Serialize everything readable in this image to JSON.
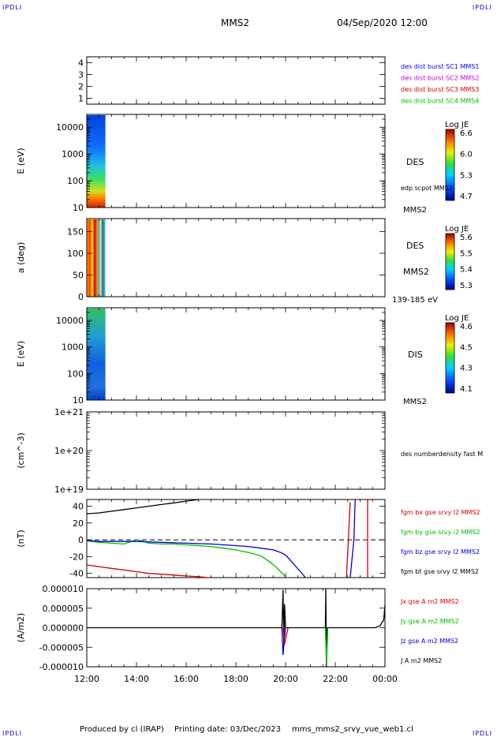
{
  "corners": {
    "tl": "IPDLI",
    "tr": "IPDLI",
    "bl": "IPDLI",
    "br": "IPDLI"
  },
  "header": {
    "spacecraft": "MMS2",
    "datetime": "04/Sep/2020 12:00"
  },
  "footer": {
    "produced_by": "Produced by cl (IRAP)",
    "printing_date": "Printing date: 03/Dec/2023",
    "product": "mms_mms2_srvy_vue_web1.cl"
  },
  "time_axis": {
    "tick_labels": [
      "12:00",
      "14:00",
      "16:00",
      "18:00",
      "20:00",
      "22:00",
      "00:00"
    ],
    "range_hours": [
      12,
      24
    ]
  },
  "chart_data": [
    {
      "type": "scatter",
      "panel": "spacecraft-availability",
      "ylabel": "",
      "ylim": [
        0.5,
        4.5
      ],
      "yticks": [
        "1",
        "2",
        "3",
        "4"
      ],
      "legend": [
        {
          "name": "des dist burst SC1 MMS1",
          "color": "#0000ff"
        },
        {
          "name": "des dist burst SC2 MMS2",
          "color": "#cc00cc"
        },
        {
          "name": "des dist burst SC3 MMS3",
          "color": "#cc0000"
        },
        {
          "name": "des dist burst SC4 MMS4",
          "color": "#00bb00"
        }
      ],
      "series": []
    },
    {
      "type": "heatmap",
      "panel": "des-energy",
      "ylabel": "E (eV)",
      "yscale": "log",
      "ylim": [
        10,
        30000
      ],
      "yticks": [
        "10",
        "100",
        "1000",
        "10000"
      ],
      "x_extent_hours": [
        12.0,
        12.75
      ],
      "labels": [
        "DES",
        "edp scpot MMS2",
        "MMS2"
      ],
      "colorbar": {
        "title": "Log JE",
        "ticks": [
          "6.6",
          "6.0",
          "5.3",
          "4.7"
        ]
      }
    },
    {
      "type": "heatmap",
      "panel": "des-pitch-angle",
      "ylabel": "a (deg)",
      "ylim": [
        0,
        180
      ],
      "yticks": [
        "0",
        "50",
        "100",
        "150"
      ],
      "x_extent_hours": [
        12.0,
        12.75
      ],
      "labels": [
        "DES",
        "MMS2",
        "139-185 eV"
      ],
      "colorbar": {
        "title": "Log JE",
        "ticks": [
          "5.6",
          "5.5",
          "5.4",
          "5.3"
        ]
      }
    },
    {
      "type": "heatmap",
      "panel": "dis-energy",
      "ylabel": "E (eV)",
      "yscale": "log",
      "ylim": [
        10,
        30000
      ],
      "yticks": [
        "10",
        "100",
        "1000",
        "10000"
      ],
      "x_extent_hours": [
        12.0,
        12.75
      ],
      "labels": [
        "DIS",
        "MMS2"
      ],
      "colorbar": {
        "title": "Log JE",
        "ticks": [
          "4.6",
          "4.5",
          "4.3",
          "4.1"
        ]
      }
    },
    {
      "type": "line",
      "panel": "density",
      "ylabel": "(cm^-3)",
      "yscale": "log",
      "ylim": [
        1e+19,
        1e+21
      ],
      "yticks": [
        "1e+19",
        "1e+20",
        "1e+21"
      ],
      "legend": [
        {
          "name": "des numberdensity fast M",
          "color": "#000000"
        }
      ],
      "series": []
    },
    {
      "type": "line",
      "panel": "magnetic-field",
      "ylabel": "(nT)",
      "ylim": [
        -45,
        48
      ],
      "yticks": [
        "-40",
        "-20",
        "0",
        "20",
        "40"
      ],
      "zero_line": true,
      "legend": [
        {
          "name": "fgm bx gse srvy l2 MMS2",
          "color": "#cc0000"
        },
        {
          "name": "fgm by gse srvy l2 MMS2",
          "color": "#00bb00"
        },
        {
          "name": "fgm bz gse srvy l2 MMS2",
          "color": "#0000cc"
        },
        {
          "name": "fgm bt gse srvy l2 MMS2",
          "color": "#000000"
        }
      ],
      "series": [
        {
          "color": "#000000",
          "x": [
            12.0,
            12.5,
            13.0,
            13.5,
            14.0,
            14.5,
            15.0,
            15.5,
            16.0,
            16.5,
            16.8
          ],
          "y": [
            31,
            32,
            34,
            36,
            38,
            40,
            42,
            44,
            46,
            48,
            49
          ]
        },
        {
          "color": "#cc0000",
          "x": [
            12.0,
            12.5,
            13.0,
            13.5,
            14.0,
            14.5,
            15.0,
            15.5,
            16.0,
            16.5,
            16.9
          ],
          "y": [
            -30,
            -32,
            -34,
            -36,
            -38,
            -40,
            -41,
            -42,
            -43,
            -44,
            -45
          ]
        },
        {
          "color": "#00bb00",
          "x": [
            12.0,
            12.5,
            13.0,
            13.5,
            14.0,
            14.2,
            14.5,
            15.0,
            15.5,
            16.0,
            16.5,
            17.0,
            17.5,
            18.0,
            18.5,
            19.0,
            19.3,
            19.6,
            19.8,
            20.0
          ],
          "y": [
            -1,
            -3,
            -4,
            -5,
            0,
            -1,
            -4,
            -5,
            -5,
            -6,
            -7,
            -8,
            -10,
            -12,
            -15,
            -19,
            -25,
            -32,
            -38,
            -44
          ]
        },
        {
          "color": "#0000cc",
          "x": [
            12.0,
            12.5,
            13.0,
            14.0,
            15.0,
            16.0,
            17.0,
            18.0,
            18.5,
            19.0,
            19.5,
            19.8,
            20.0,
            20.3,
            20.6,
            20.8
          ],
          "y": [
            -1,
            -2,
            -2,
            -2,
            -3,
            -4,
            -5,
            -7,
            -8,
            -10,
            -12,
            -15,
            -18,
            -28,
            -38,
            -45
          ]
        },
        {
          "color": "#cc0000",
          "x": [
            22.45,
            22.6
          ],
          "y": [
            -45,
            45
          ]
        },
        {
          "color": "#0000cc",
          "x": [
            22.6,
            22.75,
            22.8
          ],
          "y": [
            -45,
            0,
            48
          ]
        },
        {
          "color": "#cc0000",
          "x": [
            23.3,
            23.3
          ],
          "y": [
            48,
            -45
          ]
        }
      ]
    },
    {
      "type": "line",
      "panel": "current-density",
      "ylabel": "(A/m2)",
      "ylim": [
        -1e-05,
        1e-05
      ],
      "yticks": [
        "-0.000010",
        "-0.000005",
        "0.000000",
        "0.000005",
        "0.000010"
      ],
      "legend": [
        {
          "name": "Jx gse A m2 MMS2",
          "color": "#cc0000"
        },
        {
          "name": "Jy gse A m2 MMS2",
          "color": "#00bb00"
        },
        {
          "name": "Jz gse A m2 MMS2",
          "color": "#0000cc"
        },
        {
          "name": "J A m2 MMS2",
          "color": "#000000"
        }
      ],
      "series": [
        {
          "color": "#000000",
          "x": [
            12.0,
            19.85,
            19.9,
            19.93,
            19.96,
            20.0,
            21.6,
            21.62,
            21.64,
            21.66,
            23.6,
            23.8,
            23.95,
            24.0
          ],
          "y": [
            0,
            0,
            9.7e-06,
            -4.5e-06,
            6e-06,
            0,
            0,
            1e-05,
            -1e-05,
            0,
            0,
            5e-07,
            2e-06,
            5.8e-06
          ]
        },
        {
          "color": "#0000cc",
          "x": [
            19.85,
            19.9,
            19.95,
            20.0
          ],
          "y": [
            0,
            -7e-06,
            -3e-06,
            0
          ]
        },
        {
          "color": "#cc0000",
          "x": [
            19.9,
            19.95,
            20.0,
            20.1
          ],
          "y": [
            0,
            -4.5e-06,
            -3e-06,
            0
          ]
        },
        {
          "color": "#00bb00",
          "x": [
            21.6,
            21.65,
            21.7
          ],
          "y": [
            0,
            -9.5e-06,
            0
          ]
        }
      ]
    }
  ]
}
